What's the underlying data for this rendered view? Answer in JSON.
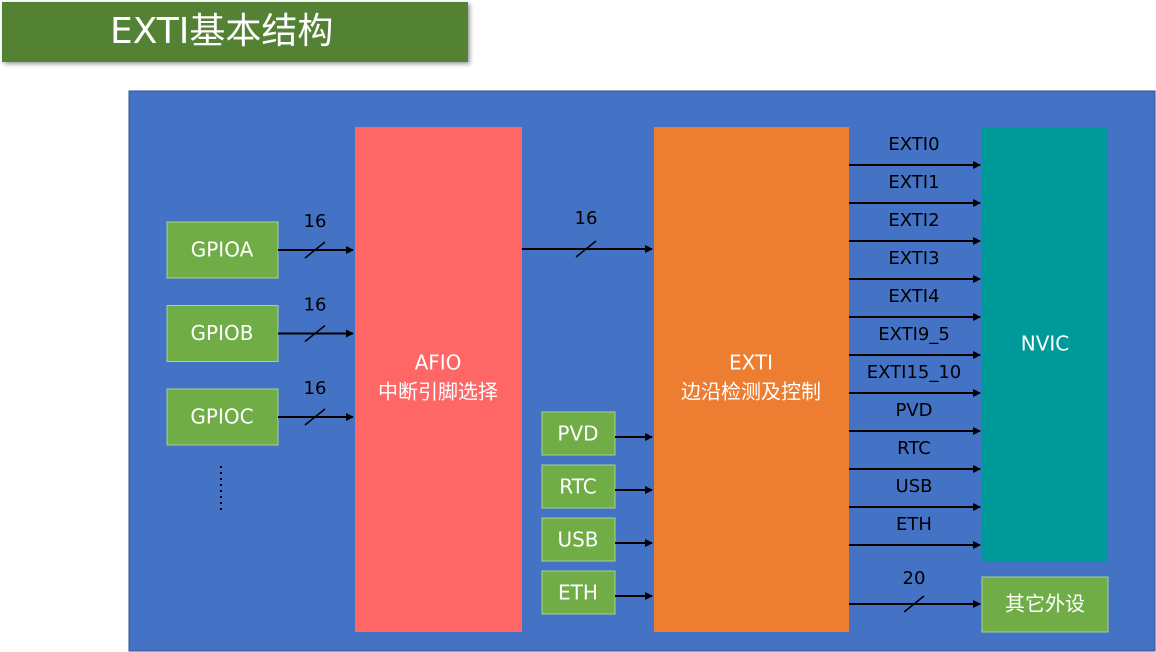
{
  "title": "EXTI基本结构",
  "gpio": [
    {
      "label": "GPIOA",
      "width": "16"
    },
    {
      "label": "GPIOB",
      "width": "16"
    },
    {
      "label": "GPIOC",
      "width": "16"
    }
  ],
  "afio": {
    "name": "AFIO",
    "description": "中断引脚选择",
    "out_width": "16"
  },
  "sources": [
    "PVD",
    "RTC",
    "USB",
    "ETH"
  ],
  "exti": {
    "name": "EXTI",
    "description": "边沿检测及控制"
  },
  "outputs": [
    "EXTI0",
    "EXTI1",
    "EXTI2",
    "EXTI3",
    "EXTI4",
    "EXTI9_5",
    "EXTI15_10",
    "PVD",
    "RTC",
    "USB",
    "ETH"
  ],
  "nvic": "NVIC",
  "other": {
    "width": "20",
    "label": "其它外设"
  }
}
